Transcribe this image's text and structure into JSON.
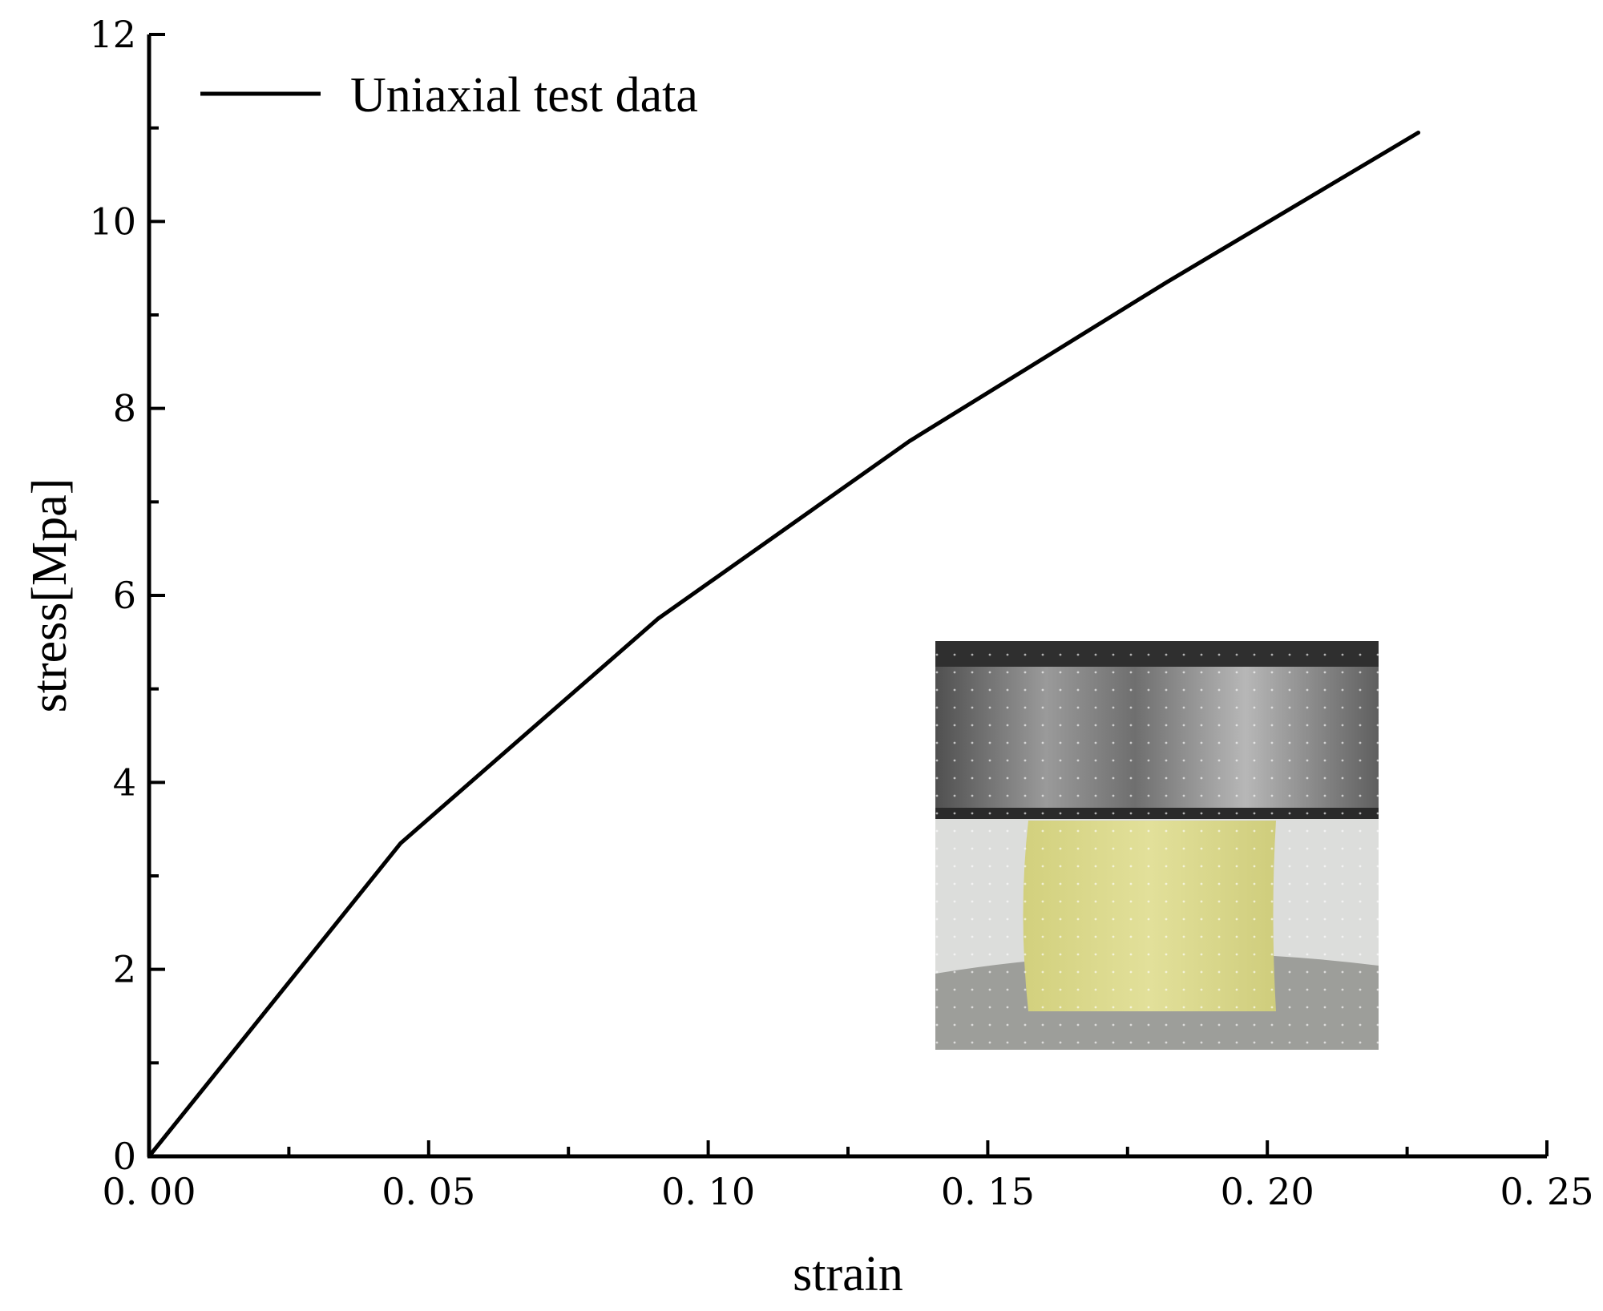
{
  "chart_data": {
    "type": "line",
    "title": "",
    "xlabel": "strain",
    "ylabel": "stress[Mpa]",
    "xlim": [
      0,
      0.25
    ],
    "ylim": [
      0,
      12
    ],
    "x_ticks": [
      0,
      0.05,
      0.1,
      0.15,
      0.2,
      0.25
    ],
    "x_tick_labels": [
      "0. 00",
      "0. 05",
      "0. 10",
      "0. 15",
      "0. 20",
      "0. 25"
    ],
    "y_ticks": [
      0,
      2,
      4,
      6,
      8,
      10,
      12
    ],
    "y_tick_labels": [
      "0",
      "2",
      "4",
      "6",
      "8",
      "10",
      "12"
    ],
    "x_minor_ticks": [
      0.025,
      0.075,
      0.125,
      0.175,
      0.225
    ],
    "y_minor_ticks": [
      1,
      3,
      5,
      7,
      9,
      11
    ],
    "grid": false,
    "legend_position": "top-left",
    "series": [
      {
        "name": "Uniaxial test data",
        "color": "#000000",
        "x": [
          0,
          0.045,
          0.091,
          0.136,
          0.182,
          0.227
        ],
        "y": [
          0,
          3.35,
          5.75,
          7.65,
          9.35,
          10.95
        ]
      }
    ],
    "inset_image": {
      "description_icon": "specimen-compression-photo",
      "position": "bottom-right",
      "colors": {
        "platen_dark": "#3a3a3a",
        "platen_mid": "#8c8c8c",
        "platen_light": "#c8c8c8",
        "background": "#d9dbd9",
        "specimen": "#d9d98a",
        "specimen_edge": "#c9c77a",
        "base": "#9b9b98"
      }
    }
  }
}
